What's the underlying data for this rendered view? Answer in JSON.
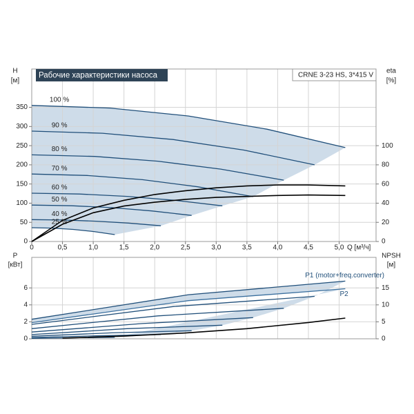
{
  "chart_data": [
    {
      "type": "line",
      "title": "Рабочие характеристики насоса",
      "subtitle": "CRNE 3-23 HS, 3*415 V",
      "ylabel": "H",
      "yunit": "[м]",
      "y2label": "eta",
      "y2unit": "[%]",
      "xlabel": "Q [м³/ч]",
      "xlim": [
        0,
        5.6
      ],
      "xticks": [
        0,
        {
          "value": 0.5,
          "label": "0,5"
        },
        {
          "value": 1,
          "label": "1,0"
        },
        {
          "value": 1.5,
          "label": "1,5"
        },
        {
          "value": 2,
          "label": "2,0"
        },
        {
          "value": 2.5,
          "label": "2,5"
        },
        {
          "value": 3,
          "label": "3,0"
        },
        {
          "value": 3.5,
          "label": "3,5"
        },
        {
          "value": 4,
          "label": "4,0"
        },
        {
          "value": 4.5,
          "label": "4,5"
        },
        {
          "value": 5,
          "label": "5,0"
        }
      ],
      "ylim": [
        0,
        450
      ],
      "yticks": [
        0,
        50,
        100,
        150,
        200,
        250,
        300,
        350
      ],
      "y2lim": [
        0,
        180
      ],
      "y2ticks": [
        0,
        20,
        40,
        60,
        80,
        100
      ],
      "grid": true,
      "series": [
        {
          "name": "100 %",
          "color": "#1f4e79",
          "x": [
            0,
            1.275,
            2.55,
            3.825,
            5.1
          ],
          "values": [
            355,
            348.1,
            327.5,
            293.1,
            245
          ]
        },
        {
          "name": "90 %",
          "color": "#1f4e79",
          "x": [
            0,
            1.15,
            2.3,
            3.45,
            4.6
          ],
          "values": [
            288,
            282.5,
            266.0,
            238.5,
            200
          ]
        },
        {
          "name": "80 %",
          "color": "#1f4e79",
          "x": [
            0,
            1.025,
            2.05,
            3.075,
            4.1
          ],
          "values": [
            226,
            221.9,
            209.5,
            188.9,
            160
          ]
        },
        {
          "name": "70 %",
          "color": "#1f4e79",
          "x": [
            0,
            0.9,
            1.8,
            2.7,
            3.6
          ],
          "values": [
            176,
            172.3,
            161.3,
            142.8,
            117
          ]
        },
        {
          "name": "60 %",
          "color": "#1f4e79",
          "x": [
            0,
            0.775,
            1.55,
            2.325,
            3.1
          ],
          "values": [
            126,
            123.9,
            117.7,
            107.4,
            93
          ]
        },
        {
          "name": "50 %",
          "color": "#1f4e79",
          "x": [
            0,
            0.65,
            1.3,
            1.95,
            2.6
          ],
          "values": [
            95,
            93.3,
            88.3,
            79.8,
            68
          ]
        },
        {
          "name": "40 %",
          "color": "#1f4e79",
          "x": [
            0,
            0.525,
            1.05,
            1.575,
            2.1
          ],
          "values": [
            57,
            56.0,
            53.0,
            48.0,
            41
          ]
        },
        {
          "name": "25 %",
          "color": "#1f4e79",
          "x": [
            0,
            0.3375,
            0.675,
            1.0125,
            1.35
          ],
          "values": [
            36,
            34.9,
            31.5,
            25.9,
            18
          ]
        },
        {
          "axis": "y2",
          "color": "#000000",
          "x": [
            0,
            0.5,
            1,
            1.5,
            2,
            2.5,
            3,
            3.5,
            4,
            4.5,
            5.1
          ],
          "values": [
            0,
            22,
            35,
            43,
            49,
            53,
            56,
            58,
            59,
            59,
            58
          ]
        },
        {
          "axis": "y2",
          "color": "#000000",
          "x": [
            0,
            0.5,
            1,
            1.5,
            2,
            2.5,
            3,
            3.5,
            4,
            4.5,
            5.1
          ],
          "values": [
            0,
            18,
            30,
            37,
            41,
            44,
            46,
            47,
            48,
            48.5,
            48
          ]
        }
      ]
    },
    {
      "type": "line",
      "ylabel": "P",
      "yunit": "[кВт]",
      "y2label": "NPSH",
      "y2unit": "[м]",
      "xlim": [
        0,
        5.6
      ],
      "ylim": [
        0,
        9.6
      ],
      "yticks": [
        0,
        2,
        4,
        6
      ],
      "y2lim": [
        0,
        24
      ],
      "y2ticks": [
        0,
        5,
        10,
        15
      ],
      "grid": true,
      "series": [
        {
          "name": "P1 (motor+freq.converter)",
          "color": "#1f4e79",
          "x": [
            0,
            2.55,
            5.1
          ],
          "values": [
            2.3,
            5.2,
            6.8
          ]
        },
        {
          "color": "#1f4e79",
          "x": [
            0,
            2.3,
            4.6
          ],
          "values": [
            1.7,
            3.8,
            5.0
          ]
        },
        {
          "color": "#1f4e79",
          "x": [
            0,
            2.05,
            4.1
          ],
          "values": [
            1.2,
            2.7,
            3.6
          ]
        },
        {
          "color": "#1f4e79",
          "x": [
            0,
            1.8,
            3.6
          ],
          "values": [
            0.8,
            1.8,
            2.5
          ]
        },
        {
          "color": "#1f4e79",
          "x": [
            0,
            1.55,
            3.1
          ],
          "values": [
            0.5,
            1.2,
            1.6
          ]
        },
        {
          "color": "#1f4e79",
          "x": [
            0,
            1.3,
            2.6
          ],
          "values": [
            0.3,
            0.7,
            0.95
          ]
        },
        {
          "color": "#1f4e79",
          "x": [
            0,
            1.05,
            2.1
          ],
          "values": [
            0.15,
            0.35,
            0.5
          ]
        },
        {
          "color": "#1f4e79",
          "x": [
            0,
            0.675,
            1.35
          ],
          "values": [
            0.05,
            0.12,
            0.17
          ]
        },
        {
          "name": "P2",
          "color": "#3a6f9e",
          "x": [
            0,
            2.55,
            5.1
          ],
          "values": [
            1.9,
            4.5,
            5.9
          ]
        },
        {
          "axis": "y2",
          "color": "#000000",
          "x": [
            0.5,
            1.5,
            2.5,
            3.5,
            4.5,
            5.1
          ],
          "values": [
            0.2,
            0.8,
            1.7,
            3.0,
            4.8,
            6.1
          ]
        }
      ]
    }
  ]
}
